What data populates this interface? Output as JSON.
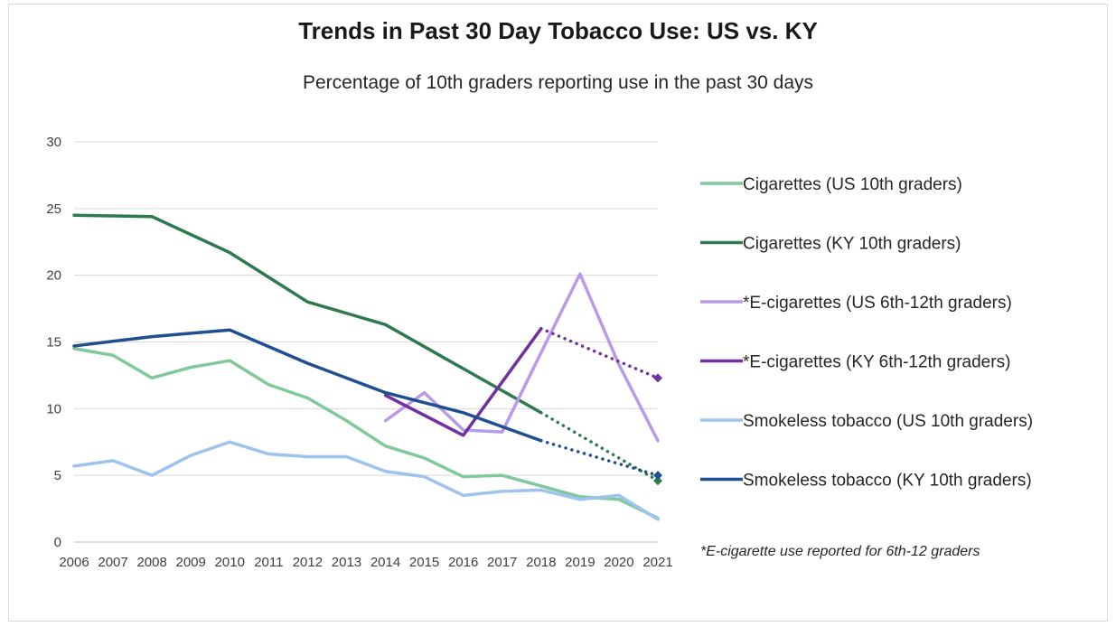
{
  "chart_data": {
    "type": "line",
    "title": "Trends in Past 30 Day Tobacco Use: US vs. KY",
    "subtitle": "Percentage of 10th graders reporting use in the past 30 days",
    "x": [
      2006,
      2007,
      2008,
      2009,
      2010,
      2011,
      2012,
      2013,
      2014,
      2015,
      2016,
      2017,
      2018,
      2019,
      2020,
      2021
    ],
    "ylim": [
      0,
      30
    ],
    "yticks": [
      0,
      5,
      10,
      15,
      20,
      25,
      30
    ],
    "grid": true,
    "legend_position": "right",
    "series": [
      {
        "name": "Cigarettes (US 10th graders)",
        "color": "#7fc99a",
        "values": [
          14.5,
          14.0,
          12.3,
          13.1,
          13.6,
          11.8,
          10.8,
          9.1,
          7.2,
          6.3,
          4.9,
          5.0,
          4.2,
          3.4,
          3.2,
          1.8
        ]
      },
      {
        "name": "Cigarettes (KY 10th graders)",
        "color": "#2d7a4f",
        "values": [
          24.5,
          24.45,
          24.4,
          23.05,
          21.7,
          19.85,
          18.0,
          17.15,
          16.3,
          14.65,
          13.0,
          11.35,
          9.7,
          null,
          null,
          null
        ],
        "projection": {
          "from": 2018,
          "to": 2021,
          "values": [
            9.7,
            4.6
          ]
        }
      },
      {
        "name": "*E-cigarettes (US 6th-12th graders)",
        "color": "#b79be6",
        "values": [
          null,
          null,
          null,
          null,
          null,
          null,
          null,
          null,
          9.1,
          11.2,
          8.4,
          8.25,
          14.2,
          20.1,
          13.3,
          7.6
        ]
      },
      {
        "name": "*E-cigarettes (KY 6th-12th graders)",
        "color": "#7030a0",
        "values": [
          null,
          null,
          null,
          null,
          null,
          null,
          null,
          null,
          11.0,
          9.5,
          8.0,
          12.0,
          16.0,
          null,
          null,
          null
        ],
        "projection": {
          "from": 2018,
          "to": 2021,
          "values": [
            16.0,
            12.3
          ]
        }
      },
      {
        "name": "Smokeless tobacco (US 10th graders)",
        "color": "#9dc3ee",
        "values": [
          5.7,
          6.1,
          5.0,
          6.5,
          7.5,
          6.6,
          6.4,
          6.4,
          5.3,
          4.9,
          3.5,
          3.8,
          3.9,
          3.2,
          3.5,
          1.7
        ]
      },
      {
        "name": "Smokeless tobacco (KY 10th graders)",
        "color": "#1f4e91",
        "values": [
          14.7,
          15.05,
          15.4,
          15.65,
          15.9,
          14.65,
          13.4,
          12.3,
          11.2,
          10.45,
          9.7,
          8.65,
          7.6,
          null,
          null,
          null
        ],
        "projection": {
          "from": 2018,
          "to": 2021,
          "values": [
            7.6,
            5.0
          ]
        }
      }
    ],
    "footnote": "*E-cigarette use reported for 6th-12 graders"
  }
}
